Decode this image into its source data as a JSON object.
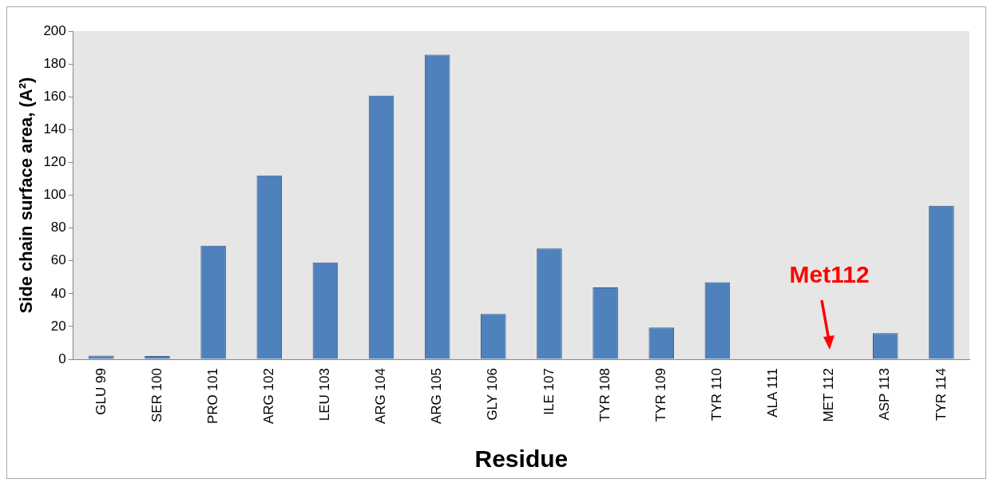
{
  "chart_data": {
    "type": "bar",
    "xlabel": "Residue",
    "ylabel": "Side chain surface area, (A²)",
    "categories": [
      "GLU 99",
      "SER 100",
      "PRO 101",
      "ARG 102",
      "LEU 103",
      "ARG 104",
      "ARG 105",
      "GLY 106",
      "ILE 107",
      "TYR 108",
      "TYR 109",
      "TYR 110",
      "ALA 111",
      "MET 112",
      "ASP 113",
      "TYR 114"
    ],
    "values": [
      2.2,
      2,
      69.3,
      112,
      59,
      160.7,
      185.6,
      27.7,
      67.6,
      43.8,
      19.4,
      47,
      0,
      0.3,
      16,
      93.6
    ],
    "color": "#4f81bd",
    "ylim": [
      0,
      200
    ],
    "yticks": [
      0,
      20,
      40,
      60,
      80,
      100,
      120,
      140,
      160,
      180,
      200
    ],
    "grid": false,
    "legend": false,
    "annotations": [
      {
        "text": "Met112",
        "x": "MET 112",
        "y": 0.3
      }
    ]
  }
}
